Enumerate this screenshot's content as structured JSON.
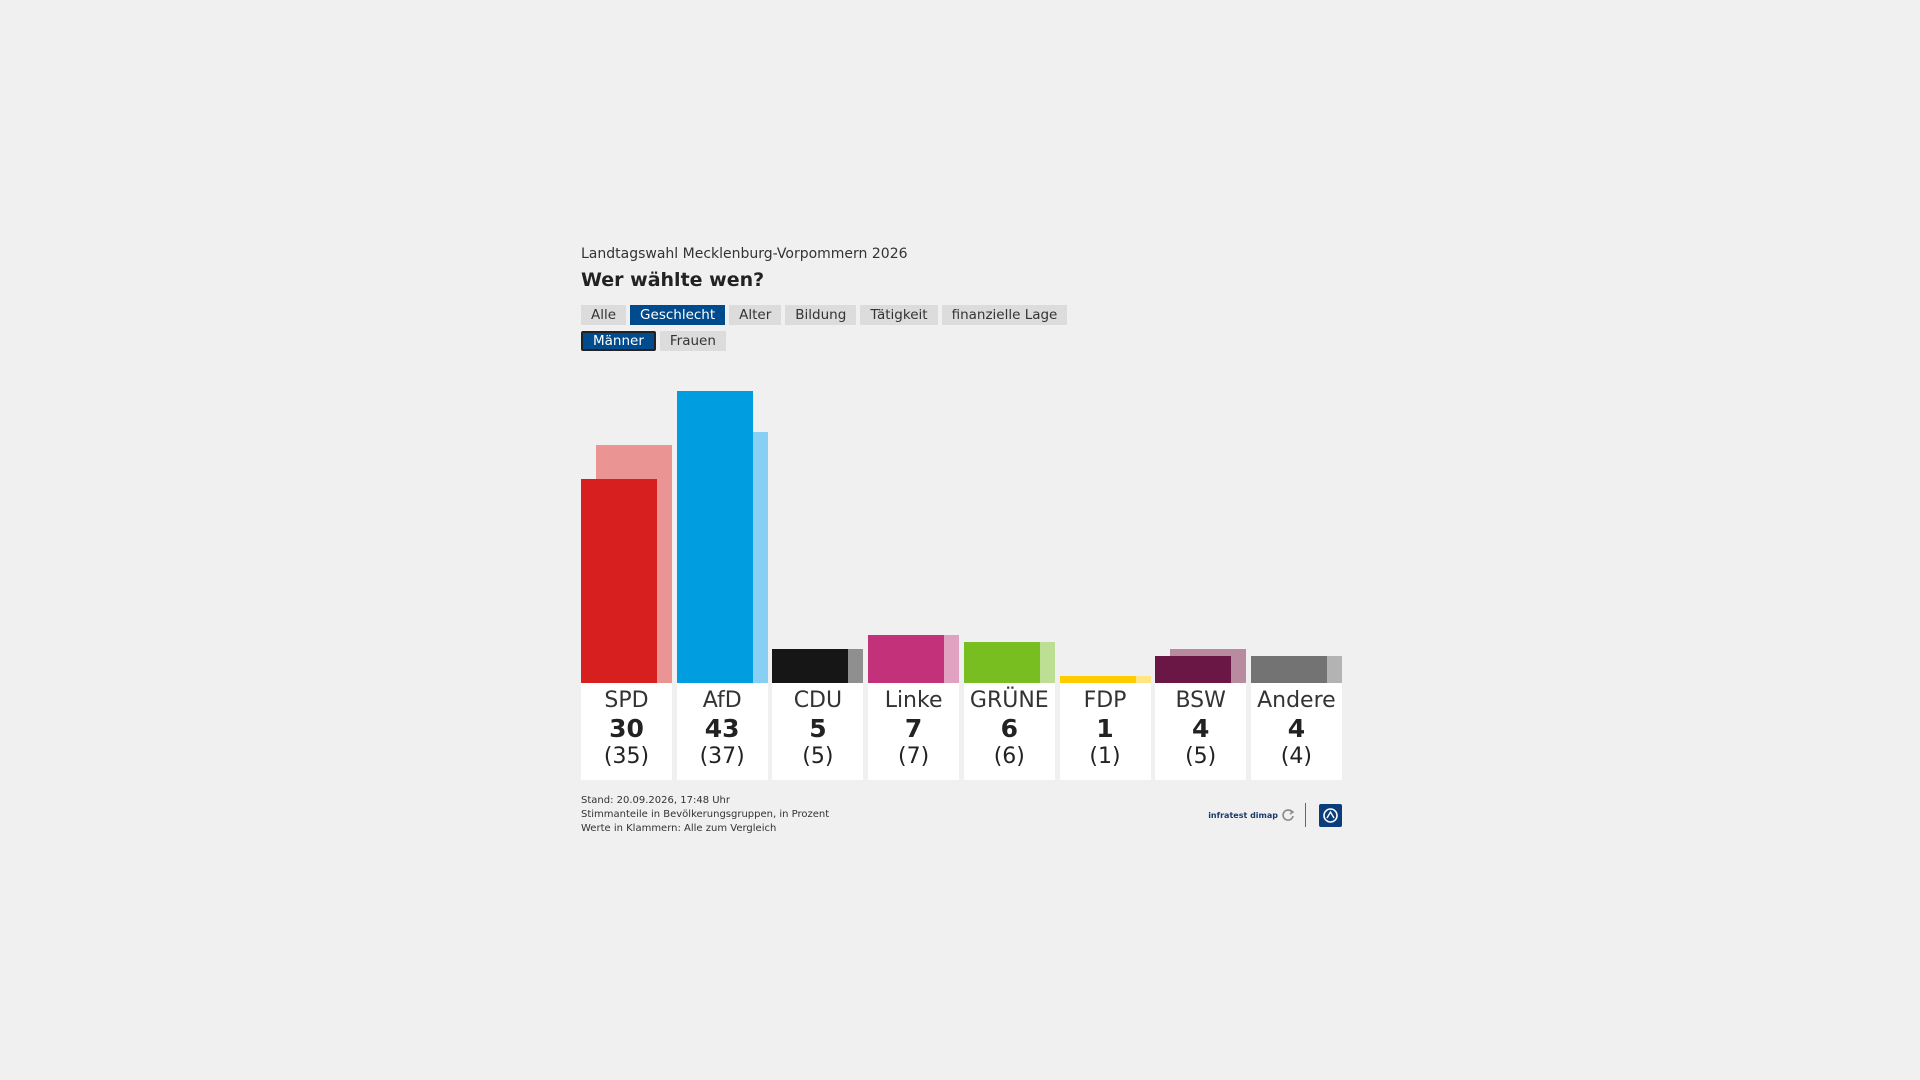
{
  "header": {
    "subtitle": "Landtagswahl Mecklenburg-Vorpommern 2026",
    "title": "Wer wählte wen?"
  },
  "tabs": [
    "Alle",
    "Geschlecht",
    "Alter",
    "Bildung",
    "Tätigkeit",
    "finanzielle Lage"
  ],
  "active_tab": "Geschlecht",
  "subtabs": [
    "Männer",
    "Frauen"
  ],
  "active_subtab": "Männer",
  "chart_data": {
    "type": "bar",
    "categories": [
      "SPD",
      "AfD",
      "CDU",
      "Linke",
      "GRÜNE",
      "FDP",
      "BSW",
      "Andere"
    ],
    "series": [
      {
        "name": "Männer",
        "values": [
          30,
          43,
          5,
          7,
          6,
          1,
          4,
          4
        ]
      },
      {
        "name": "Alle",
        "values": [
          35,
          37,
          5,
          7,
          6,
          1,
          5,
          4
        ]
      }
    ],
    "value_labels": [
      "30",
      "43",
      "5",
      "7",
      "6",
      "1",
      "4",
      "4"
    ],
    "compare_labels": [
      "(35)",
      "(37)",
      "(5)",
      "(7)",
      "(6)",
      "(1)",
      "(5)",
      "(4)"
    ],
    "colors": [
      "#d71f1f",
      "#009ee0",
      "#161616",
      "#c3317b",
      "#78be20",
      "#ffcc00",
      "#6b1746",
      "#737373"
    ],
    "colors_light": [
      "#eb9494",
      "#87d0f4",
      "#8f8f8f",
      "#e1a1c1",
      "#bcdf93",
      "#ffe680",
      "#b88ba0",
      "#b3b3b3"
    ],
    "ylim": [
      0,
      43
    ]
  },
  "footer": {
    "lines": [
      "Stand: 20.09.2026, 17:48 Uhr",
      "Stimmanteile in Bevölkerungsgruppen, in Prozent",
      "Werte in Klammern: Alle zum Vergleich"
    ],
    "logo_text": "infratest dimap"
  }
}
